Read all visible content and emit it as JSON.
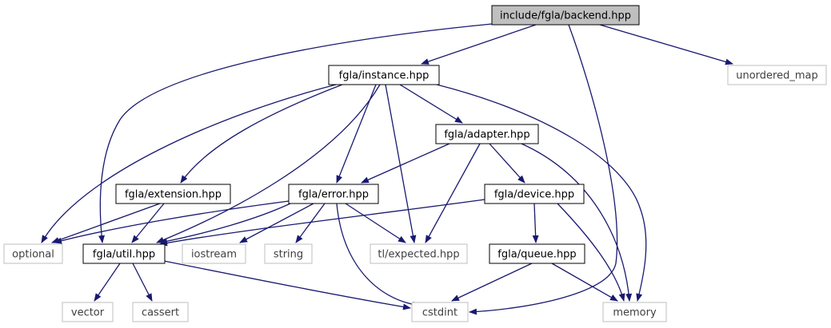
{
  "colors": {
    "edge": "#191970",
    "node_border": "#000000",
    "external_border": "#bfbfbf",
    "root_fill": "#bfbfbf",
    "node_fill": "#ffffff"
  },
  "nodes": [
    {
      "id": "backend",
      "label": "include/fgla/backend.hpp",
      "kind": "root"
    },
    {
      "id": "instance",
      "label": "fgla/instance.hpp",
      "kind": "internal"
    },
    {
      "id": "unordered_map",
      "label": "unordered_map",
      "kind": "external"
    },
    {
      "id": "adapter",
      "label": "fgla/adapter.hpp",
      "kind": "internal"
    },
    {
      "id": "extension",
      "label": "fgla/extension.hpp",
      "kind": "internal"
    },
    {
      "id": "error",
      "label": "fgla/error.hpp",
      "kind": "internal"
    },
    {
      "id": "device",
      "label": "fgla/device.hpp",
      "kind": "internal"
    },
    {
      "id": "optional",
      "label": "optional",
      "kind": "external"
    },
    {
      "id": "util",
      "label": "fgla/util.hpp",
      "kind": "internal"
    },
    {
      "id": "iostream",
      "label": "iostream",
      "kind": "external"
    },
    {
      "id": "string",
      "label": "string",
      "kind": "external"
    },
    {
      "id": "expected",
      "label": "tl/expected.hpp",
      "kind": "external"
    },
    {
      "id": "queue",
      "label": "fgla/queue.hpp",
      "kind": "internal"
    },
    {
      "id": "vector",
      "label": "vector",
      "kind": "external"
    },
    {
      "id": "cassert",
      "label": "cassert",
      "kind": "external"
    },
    {
      "id": "cstdint",
      "label": "cstdint",
      "kind": "external"
    },
    {
      "id": "memory",
      "label": "memory",
      "kind": "external"
    }
  ],
  "edges": [
    {
      "from": "backend",
      "to": "instance"
    },
    {
      "from": "backend",
      "to": "unordered_map"
    },
    {
      "from": "backend",
      "to": "util"
    },
    {
      "from": "backend",
      "to": "cstdint"
    },
    {
      "from": "instance",
      "to": "adapter"
    },
    {
      "from": "instance",
      "to": "extension"
    },
    {
      "from": "instance",
      "to": "error"
    },
    {
      "from": "instance",
      "to": "optional"
    },
    {
      "from": "instance",
      "to": "util"
    },
    {
      "from": "instance",
      "to": "expected"
    },
    {
      "from": "instance",
      "to": "memory"
    },
    {
      "from": "adapter",
      "to": "error"
    },
    {
      "from": "adapter",
      "to": "device"
    },
    {
      "from": "adapter",
      "to": "expected"
    },
    {
      "from": "adapter",
      "to": "memory"
    },
    {
      "from": "extension",
      "to": "optional"
    },
    {
      "from": "extension",
      "to": "util"
    },
    {
      "from": "error",
      "to": "optional"
    },
    {
      "from": "error",
      "to": "util"
    },
    {
      "from": "error",
      "to": "iostream"
    },
    {
      "from": "error",
      "to": "string"
    },
    {
      "from": "error",
      "to": "expected"
    },
    {
      "from": "error",
      "to": "cstdint"
    },
    {
      "from": "device",
      "to": "util"
    },
    {
      "from": "device",
      "to": "queue"
    },
    {
      "from": "device",
      "to": "memory"
    },
    {
      "from": "util",
      "to": "vector"
    },
    {
      "from": "util",
      "to": "cassert"
    },
    {
      "from": "util",
      "to": "cstdint"
    },
    {
      "from": "queue",
      "to": "cstdint"
    },
    {
      "from": "queue",
      "to": "memory"
    }
  ]
}
